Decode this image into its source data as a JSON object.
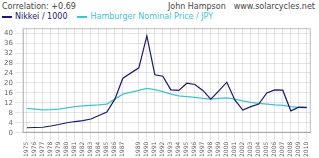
{
  "chart_data": {
    "type": "line",
    "x": [
      1975,
      1976,
      1977,
      1978,
      1979,
      1980,
      1981,
      1982,
      1983,
      1984,
      1985,
      1986,
      1987,
      1989,
      1990,
      1991,
      1992,
      1993,
      1994,
      1995,
      1996,
      1997,
      1998,
      1999,
      2000,
      2001,
      2002,
      2003,
      2004,
      2005,
      2006,
      2007,
      2008,
      2009,
      2010
    ],
    "series": [
      {
        "name": "Nikkei / 1000",
        "color": "#1a1a6e",
        "values": [
          2.0,
          2.1,
          2.2,
          2.7,
          3.3,
          4.0,
          4.5,
          4.9,
          5.5,
          6.9,
          8.3,
          13.5,
          21.9,
          26.1,
          38.9,
          23.3,
          22.7,
          17.2,
          17.0,
          19.9,
          19.4,
          17.0,
          13.5,
          16.8,
          20.3,
          13.2,
          9.1,
          10.5,
          11.5,
          16.0,
          17.2,
          17.1,
          8.8,
          10.3,
          10.2
        ]
      },
      {
        "name": "Hamburger Nominal Price / JPY",
        "color": "#40c4d0",
        "values": [
          9.8,
          9.5,
          9.2,
          9.3,
          9.5,
          10.0,
          10.5,
          10.8,
          11.0,
          11.2,
          11.5,
          13.5,
          15.5,
          17.0,
          17.8,
          17.3,
          16.5,
          15.5,
          14.8,
          14.5,
          14.2,
          13.8,
          13.5,
          13.8,
          14.0,
          13.5,
          12.8,
          12.2,
          11.8,
          11.5,
          11.2,
          11.0,
          10.5,
          10.2,
          10.0
        ]
      }
    ],
    "xlim": [
      1974.5,
      2010.5
    ],
    "xticks": [
      1975,
      1976,
      1977,
      1978,
      1979,
      1980,
      1981,
      1982,
      1983,
      1984,
      1985,
      1986,
      1987,
      1989,
      1990,
      1991,
      1992,
      1993,
      1994,
      1995,
      1996,
      1997,
      1998,
      1999,
      2000,
      2001,
      2002,
      2003,
      2004,
      2005,
      2006,
      2007,
      2008,
      2009,
      2010
    ],
    "ylim": [
      0,
      42
    ],
    "yticks": [
      0,
      4,
      8,
      12,
      16,
      20,
      24,
      28,
      32,
      36,
      40
    ],
    "grid": true,
    "legend": "top",
    "annotations": [
      "Correlation: +0.69",
      "John Hampson",
      "www.solarcycles.net"
    ]
  }
}
